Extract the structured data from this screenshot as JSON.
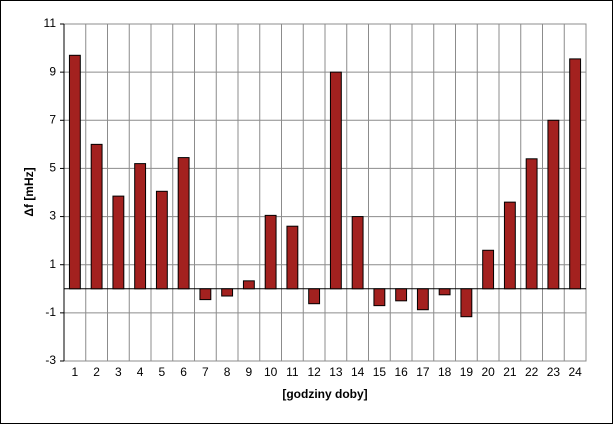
{
  "chart_data": {
    "type": "bar",
    "x_label": "[godziny doby]",
    "y_label": "Δf [mHz]",
    "categories": [
      "1",
      "2",
      "3",
      "4",
      "5",
      "6",
      "7",
      "8",
      "9",
      "10",
      "11",
      "12",
      "13",
      "14",
      "15",
      "16",
      "17",
      "18",
      "19",
      "20",
      "21",
      "22",
      "23",
      "24"
    ],
    "values": [
      9.7,
      6.0,
      3.85,
      5.2,
      4.05,
      5.45,
      -0.45,
      -0.3,
      0.33,
      3.05,
      2.6,
      -0.62,
      9.0,
      3.0,
      -0.7,
      -0.5,
      -0.87,
      -0.25,
      -1.16,
      1.6,
      3.6,
      5.4,
      7.0,
      9.55
    ],
    "color": "#a3211f",
    "ylim": [
      -3,
      11
    ],
    "yticks": [
      -3,
      -1,
      1,
      3,
      5,
      7,
      9,
      11
    ],
    "grid": true
  }
}
